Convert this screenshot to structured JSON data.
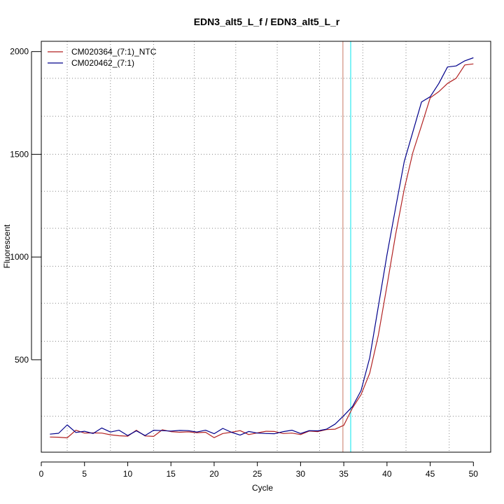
{
  "chart_data": {
    "type": "line",
    "title": "EDN3_alt5_L_f / EDN3_alt5_L_r",
    "xlabel": "Cycle",
    "ylabel": "Fluorescent",
    "xlim": [
      0,
      52
    ],
    "ylim": [
      50,
      2050
    ],
    "x_ticks": [
      0,
      5,
      10,
      15,
      20,
      25,
      30,
      35,
      40,
      45,
      50
    ],
    "y_ticks": [
      500,
      1000,
      1500,
      2000
    ],
    "grid": {
      "vertical_dotted_x": [
        3,
        8,
        13,
        17.7,
        22.5,
        27.3,
        32.2,
        37.2,
        42.2,
        47.2
      ],
      "horizontal_dotted_y": [
        225,
        410,
        590,
        775,
        955,
        1140,
        1320,
        1500,
        1685,
        1870
      ]
    },
    "legend_position": "top-left",
    "threshold_lines": [
      {
        "x": 34.9,
        "color": "#c87864"
      },
      {
        "x": 35.8,
        "color": "#00e5ee"
      }
    ],
    "x": [
      1,
      2,
      3,
      4,
      5,
      6,
      7,
      8,
      9,
      10,
      11,
      12,
      13,
      14,
      15,
      16,
      17,
      18,
      19,
      20,
      21,
      22,
      23,
      24,
      25,
      26,
      27,
      28,
      29,
      30,
      31,
      32,
      33,
      34,
      35,
      36,
      37,
      38,
      39,
      40,
      41,
      42,
      43,
      44,
      45,
      46,
      47,
      48,
      49,
      50
    ],
    "series": [
      {
        "name": "CM020364_(7:1)_NTC",
        "color": "#b22222",
        "values": [
          124,
          123,
          120,
          157,
          143,
          144,
          143,
          135,
          130,
          128,
          157,
          129,
          127,
          159,
          150,
          147,
          149,
          145,
          147,
          121,
          141,
          147,
          155,
          136,
          144,
          152,
          151,
          141,
          143,
          136,
          153,
          150,
          160,
          162,
          181,
          265,
          330,
          435,
          620,
          860,
          1110,
          1330,
          1510,
          1640,
          1775,
          1805,
          1845,
          1870,
          1935,
          1940
        ]
      },
      {
        "name": "CM020462_(7:1)",
        "color": "#00008b",
        "values": [
          138,
          142,
          183,
          146,
          152,
          141,
          168,
          148,
          157,
          131,
          154,
          131,
          157,
          155,
          153,
          156,
          155,
          148,
          157,
          140,
          166,
          147,
          133,
          151,
          143,
          141,
          140,
          150,
          157,
          141,
          155,
          154,
          162,
          187,
          228,
          272,
          350,
          510,
          760,
          1010,
          1240,
          1465,
          1610,
          1755,
          1780,
          1845,
          1925,
          1930,
          1955,
          1970
        ]
      }
    ]
  }
}
